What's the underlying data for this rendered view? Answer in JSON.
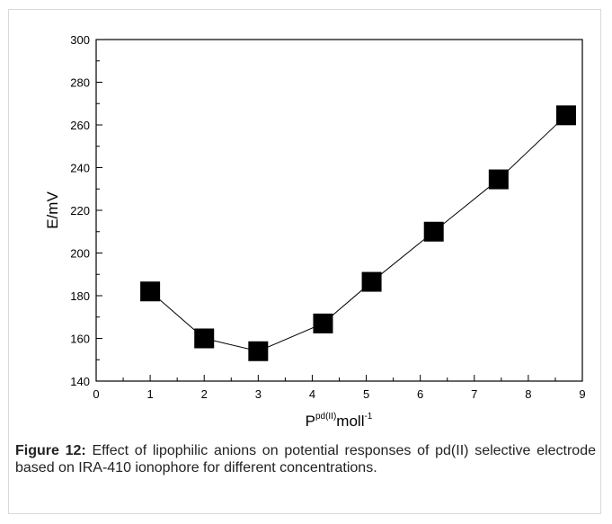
{
  "chart_data": {
    "type": "line",
    "title": "",
    "xlabel": {
      "base": "P",
      "superscript": "pd(II)",
      "unit": "moll",
      "unit_superscript": "-1"
    },
    "ylabel": "E/mV",
    "xlim": [
      0,
      9
    ],
    "ylim": [
      140,
      300
    ],
    "xticks": [
      "0",
      "1",
      "2",
      "3",
      "4",
      "5",
      "6",
      "7",
      "8",
      "9"
    ],
    "yticks": [
      "140",
      "160",
      "180",
      "200",
      "220",
      "240",
      "260",
      "280",
      "300"
    ],
    "marker": "square",
    "marker_color": "#000000",
    "line_color": "#000000",
    "grid": false,
    "legend": "none",
    "series": [
      {
        "x": [
          1.0,
          2.0,
          3.0,
          4.2,
          5.1,
          6.25,
          7.45,
          8.7
        ],
        "y": [
          182,
          160,
          154,
          167,
          186.5,
          210,
          234.5,
          264.5
        ]
      }
    ]
  },
  "caption": {
    "label": "Figure 12:",
    "text": " Effect of lipophilic anions on potential responses of pd(II) selective electrode based on IRA-410 ionophore for different concentrations."
  }
}
